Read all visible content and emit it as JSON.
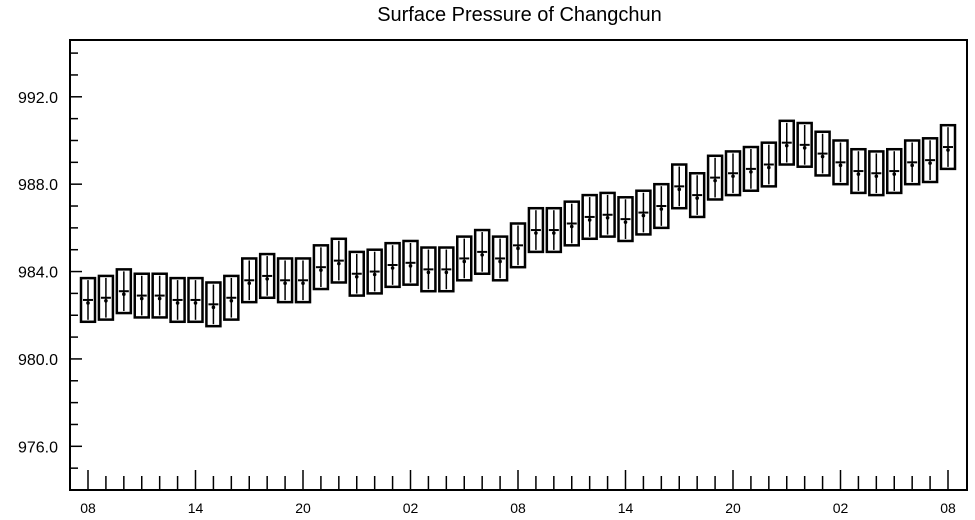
{
  "chart_data": {
    "type": "box",
    "title": "Surface Pressure of Changchun",
    "xlabel": "",
    "ylabel": "",
    "ylim": [
      974,
      994.6
    ],
    "grid": false,
    "x_tick_labels": [
      "08",
      "14",
      "20",
      "02",
      "08",
      "14",
      "20",
      "02",
      "08"
    ],
    "y_tick_labels": [
      "976.0",
      "980.0",
      "984.0",
      "988.0",
      "992.0"
    ],
    "y_tick_values": [
      976,
      980,
      984,
      988,
      992
    ],
    "series": [
      {
        "values": [
          982.7,
          982.8,
          983.1,
          982.9,
          982.9,
          982.7,
          982.7,
          982.5,
          982.8,
          983.6,
          983.8,
          983.6,
          983.6,
          984.2,
          984.5,
          983.9,
          984.0,
          984.3,
          984.4,
          984.1,
          984.1,
          984.6,
          984.9,
          984.6,
          985.2,
          985.9,
          985.9,
          986.2,
          986.5,
          986.6,
          986.4,
          986.7,
          987.0,
          987.9,
          987.5,
          988.3,
          988.5,
          988.7,
          988.9,
          989.9,
          989.8,
          989.4,
          989.0,
          988.6,
          988.5,
          988.6,
          989.0,
          989.1,
          989.7
        ]
      }
    ]
  }
}
